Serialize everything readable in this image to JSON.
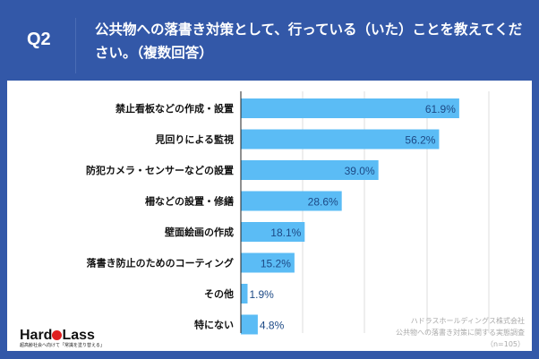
{
  "header": {
    "question": "Q2",
    "title": "公共物への落書き対策として、行っている（いた）ことを教えてください。（複数回答）"
  },
  "chart_data": {
    "type": "bar",
    "orientation": "horizontal",
    "categories": [
      "禁止看板などの作成・設置",
      "見回りによる監視",
      "防犯カメラ・センサーなどの設置",
      "柵などの設置・修繕",
      "壁面絵画の作成",
      "落書き防止のためのコーティング",
      "その他",
      "特にない"
    ],
    "values": [
      61.9,
      56.2,
      39.0,
      28.6,
      18.1,
      15.2,
      1.9,
      4.8
    ],
    "labels": [
      "61.9%",
      "56.2%",
      "39.0%",
      "28.6%",
      "18.1%",
      "15.2%",
      "1.9%",
      "4.8%"
    ],
    "xlim": [
      0,
      80
    ],
    "bar_color": "#5bbcf5",
    "grid": true
  },
  "footer": {
    "company": "ハドラスホールディングス株式会社",
    "survey": "公共物への落書き対策に関する実態調査",
    "n": "（n=105）"
  },
  "logo": {
    "name_left": "Hard",
    "name_right": "Lass",
    "tagline": "超高齢社会へ向けて「常識を塗り替える」"
  }
}
